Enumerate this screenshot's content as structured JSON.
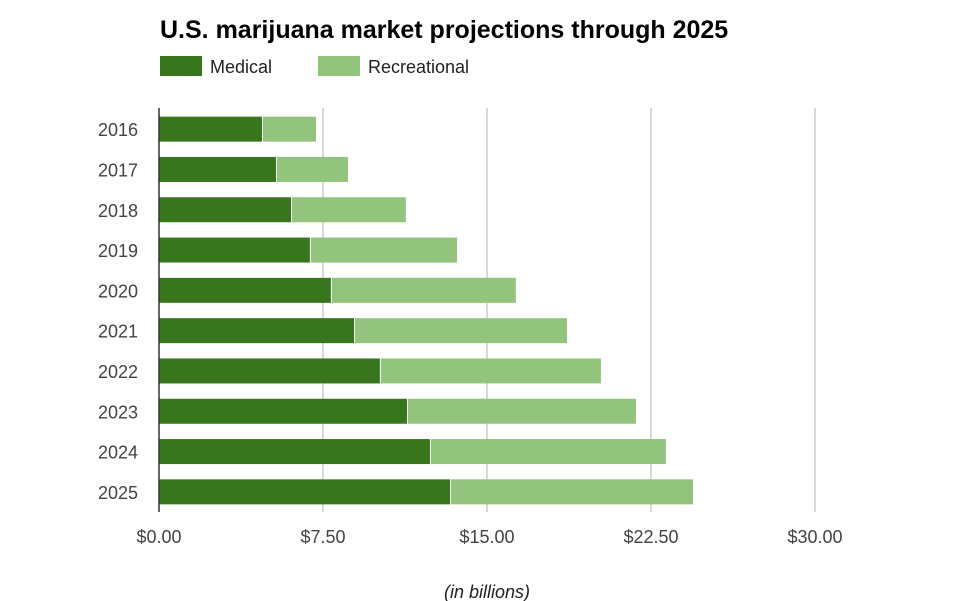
{
  "chart_data": {
    "type": "bar",
    "orientation": "horizontal",
    "stacked": true,
    "title": "U.S. marijuana market projections through 2025",
    "xlabel": "(in billions)",
    "ylabel": "",
    "categories": [
      "2016",
      "2017",
      "2018",
      "2019",
      "2020",
      "2021",
      "2022",
      "2023",
      "2024",
      "2025"
    ],
    "series": [
      {
        "name": "Medical",
        "color": "#38761d",
        "values": [
          4.71,
          5.35,
          6.04,
          6.9,
          7.86,
          8.92,
          10.1,
          11.34,
          12.39,
          13.31
        ]
      },
      {
        "name": "Recreational",
        "color": "#93c47d",
        "values": [
          2.47,
          3.29,
          5.25,
          6.73,
          8.46,
          9.74,
          10.11,
          10.47,
          10.79,
          11.11
        ]
      }
    ],
    "xlim": [
      0,
      30
    ],
    "xticks": [
      0,
      7.5,
      15,
      22.5,
      30
    ],
    "xtick_labels": [
      "$0.00",
      "$7.50",
      "$15.00",
      "$22.50",
      "$30.00"
    ],
    "grid": true,
    "legend_position": "top-left"
  }
}
